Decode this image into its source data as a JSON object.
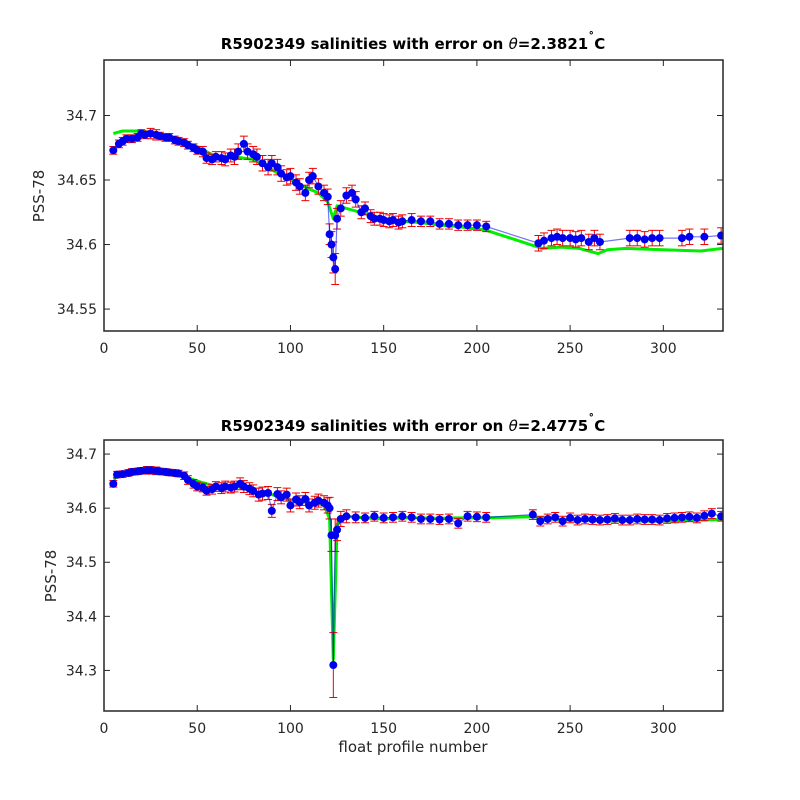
{
  "figure": {
    "background": "#ffffff",
    "colors": {
      "fit": "#00ee00",
      "error": "#ee0000",
      "points": "#0000ee"
    }
  },
  "chart_data": [
    {
      "type": "scatter",
      "title_prefix": "R5902349 salinities with error on ",
      "title_symbol": "θ",
      "title_value": "=2.3821",
      "title_deg": "˚",
      "title_unit": "C",
      "xlabel": "",
      "ylabel": "PSS-78",
      "xlim": [
        0,
        332
      ],
      "ylim": [
        34.533,
        34.743
      ],
      "xticks": [
        0,
        50,
        100,
        150,
        200,
        250,
        300
      ],
      "yticks": [
        34.55,
        34.6,
        34.65,
        34.7
      ],
      "ytick_labels": [
        "34.55",
        "34.6",
        "34.65",
        "34.7"
      ],
      "grid": false,
      "legend": "none",
      "series": [
        {
          "role": "calibrated fit",
          "style": "line",
          "x": [
            5,
            10,
            20,
            30,
            40,
            50,
            60,
            70,
            80,
            90,
            100,
            110,
            115,
            120,
            123,
            125,
            130,
            140,
            150,
            160,
            170,
            180,
            190,
            200,
            205,
            235,
            245,
            255,
            265,
            270,
            280,
            300,
            320,
            332
          ],
          "y": [
            34.686,
            34.688,
            34.688,
            34.686,
            34.681,
            34.676,
            34.668,
            34.668,
            34.666,
            34.658,
            34.65,
            34.643,
            34.64,
            34.633,
            34.62,
            34.63,
            34.628,
            34.624,
            34.62,
            34.618,
            34.617,
            34.615,
            34.614,
            34.612,
            34.611,
            34.597,
            34.598,
            34.597,
            34.593,
            34.596,
            34.597,
            34.596,
            34.595,
            34.597
          ]
        },
        {
          "role": "salinity with error",
          "style": "points",
          "x": [
            5,
            8,
            10,
            12,
            15,
            18,
            20,
            22,
            25,
            28,
            30,
            33,
            35,
            38,
            40,
            43,
            45,
            48,
            50,
            53,
            55,
            58,
            60,
            63,
            65,
            68,
            70,
            72,
            75,
            77,
            80,
            82,
            85,
            88,
            90,
            93,
            95,
            98,
            100,
            103,
            105,
            108,
            110,
            112,
            115,
            118,
            120,
            121,
            122,
            123,
            124,
            125,
            127,
            130,
            133,
            135,
            138,
            140,
            143,
            145,
            148,
            150,
            153,
            155,
            158,
            160,
            165,
            170,
            175,
            180,
            185,
            190,
            195,
            200,
            205,
            233,
            236,
            240,
            243,
            246,
            250,
            253,
            256,
            260,
            263,
            266,
            282,
            286,
            290,
            294,
            298,
            310,
            314,
            322,
            331
          ],
          "y": [
            34.673,
            34.678,
            34.68,
            34.682,
            34.682,
            34.683,
            34.686,
            34.685,
            34.686,
            34.685,
            34.684,
            34.683,
            34.683,
            34.681,
            34.68,
            34.679,
            34.677,
            34.675,
            34.673,
            34.672,
            34.667,
            34.666,
            34.668,
            34.667,
            34.666,
            34.669,
            34.668,
            34.672,
            34.678,
            34.672,
            34.67,
            34.668,
            34.663,
            34.66,
            34.663,
            34.66,
            34.655,
            34.652,
            34.653,
            34.648,
            34.645,
            34.64,
            34.65,
            34.653,
            34.645,
            34.64,
            34.637,
            34.608,
            34.6,
            34.59,
            34.581,
            34.62,
            34.628,
            34.638,
            34.64,
            34.635,
            34.625,
            34.628,
            34.622,
            34.62,
            34.62,
            34.619,
            34.618,
            34.619,
            34.617,
            34.618,
            34.619,
            34.618,
            34.618,
            34.616,
            34.616,
            34.615,
            34.615,
            34.615,
            34.614,
            34.601,
            34.603,
            34.605,
            34.606,
            34.605,
            34.605,
            34.604,
            34.605,
            34.602,
            34.605,
            34.602,
            34.605,
            34.605,
            34.604,
            34.605,
            34.605,
            34.605,
            34.606,
            34.606,
            34.607
          ],
          "err": [
            0.003,
            0.003,
            0.003,
            0.003,
            0.003,
            0.003,
            0.003,
            0.003,
            0.004,
            0.004,
            0.003,
            0.003,
            0.003,
            0.003,
            0.003,
            0.003,
            0.003,
            0.003,
            0.003,
            0.004,
            0.004,
            0.004,
            0.004,
            0.005,
            0.005,
            0.005,
            0.006,
            0.006,
            0.006,
            0.006,
            0.006,
            0.006,
            0.006,
            0.006,
            0.006,
            0.006,
            0.006,
            0.006,
            0.006,
            0.006,
            0.006,
            0.006,
            0.006,
            0.006,
            0.006,
            0.006,
            0.006,
            0.008,
            0.01,
            0.012,
            0.012,
            0.008,
            0.006,
            0.006,
            0.006,
            0.006,
            0.005,
            0.005,
            0.005,
            0.005,
            0.005,
            0.005,
            0.005,
            0.005,
            0.005,
            0.005,
            0.005,
            0.004,
            0.004,
            0.004,
            0.004,
            0.004,
            0.004,
            0.004,
            0.004,
            0.006,
            0.006,
            0.006,
            0.006,
            0.006,
            0.006,
            0.006,
            0.006,
            0.006,
            0.006,
            0.006,
            0.006,
            0.006,
            0.006,
            0.006,
            0.006,
            0.006,
            0.006,
            0.006,
            0.006
          ]
        }
      ]
    },
    {
      "type": "scatter",
      "title_prefix": "R5902349 salinities with error on ",
      "title_symbol": "θ",
      "title_value": "=2.4775",
      "title_deg": "˚",
      "title_unit": "C",
      "xlabel": "float profile number",
      "ylabel": "PSS-78",
      "xlim": [
        0,
        332
      ],
      "ylim": [
        34.225,
        34.726
      ],
      "xticks": [
        0,
        50,
        100,
        150,
        200,
        250,
        300
      ],
      "yticks": [
        34.3,
        34.4,
        34.5,
        34.6,
        34.7
      ],
      "ytick_labels": [
        "34.3",
        "34.4",
        "34.5",
        "34.6",
        "34.7"
      ],
      "grid": false,
      "legend": "none",
      "series": [
        {
          "role": "calibrated fit",
          "style": "line",
          "x": [
            5,
            10,
            20,
            30,
            40,
            50,
            60,
            70,
            80,
            90,
            100,
            110,
            118,
            121,
            123,
            125,
            130,
            140,
            150,
            160,
            170,
            180,
            190,
            200,
            205,
            230,
            240,
            250,
            260,
            270,
            280,
            290,
            300,
            310,
            320,
            332
          ],
          "y": [
            34.655,
            34.66,
            34.665,
            34.666,
            34.662,
            34.65,
            34.64,
            34.642,
            34.63,
            34.625,
            34.615,
            34.61,
            34.606,
            34.58,
            34.32,
            34.57,
            34.585,
            34.582,
            34.58,
            34.582,
            34.582,
            34.581,
            34.582,
            34.582,
            34.582,
            34.584,
            34.58,
            34.578,
            34.577,
            34.576,
            34.577,
            34.576,
            34.576,
            34.577,
            34.578,
            34.579
          ]
        },
        {
          "role": "salinity with error",
          "style": "points",
          "x": [
            5,
            7,
            10,
            13,
            15,
            18,
            20,
            23,
            25,
            28,
            30,
            33,
            35,
            38,
            40,
            43,
            45,
            48,
            50,
            53,
            55,
            58,
            60,
            63,
            65,
            68,
            70,
            73,
            75,
            78,
            80,
            83,
            85,
            88,
            90,
            93,
            95,
            98,
            100,
            103,
            105,
            108,
            110,
            113,
            115,
            118,
            120,
            121,
            122,
            123,
            124,
            125,
            127,
            130,
            135,
            140,
            145,
            150,
            155,
            160,
            165,
            170,
            175,
            180,
            185,
            190,
            195,
            200,
            205,
            230,
            234,
            238,
            242,
            246,
            250,
            254,
            258,
            262,
            266,
            270,
            274,
            278,
            282,
            286,
            290,
            294,
            298,
            302,
            306,
            310,
            314,
            318,
            322,
            326,
            331
          ],
          "y": [
            34.645,
            34.662,
            34.663,
            34.665,
            34.667,
            34.668,
            34.669,
            34.67,
            34.67,
            34.669,
            34.668,
            34.667,
            34.666,
            34.665,
            34.664,
            34.66,
            34.652,
            34.645,
            34.64,
            34.638,
            34.632,
            34.635,
            34.64,
            34.637,
            34.64,
            34.638,
            34.64,
            34.645,
            34.64,
            34.636,
            34.632,
            34.625,
            34.627,
            34.628,
            34.595,
            34.626,
            34.62,
            34.625,
            34.605,
            34.616,
            34.611,
            34.617,
            34.605,
            34.61,
            34.614,
            34.61,
            34.605,
            34.6,
            34.55,
            34.31,
            34.55,
            34.56,
            34.58,
            34.585,
            34.583,
            34.582,
            34.585,
            34.582,
            34.583,
            34.585,
            34.583,
            34.58,
            34.58,
            34.579,
            34.58,
            34.572,
            34.585,
            34.584,
            34.583,
            34.588,
            34.576,
            34.58,
            34.583,
            34.576,
            34.582,
            34.578,
            34.58,
            34.579,
            34.578,
            34.579,
            34.581,
            34.578,
            34.578,
            34.58,
            34.579,
            34.579,
            34.578,
            34.581,
            34.582,
            34.583,
            34.584,
            34.582,
            34.586,
            34.59,
            34.585
          ],
          "err": [
            0.006,
            0.006,
            0.006,
            0.006,
            0.006,
            0.006,
            0.006,
            0.007,
            0.007,
            0.007,
            0.006,
            0.006,
            0.006,
            0.006,
            0.006,
            0.007,
            0.008,
            0.008,
            0.008,
            0.008,
            0.008,
            0.009,
            0.009,
            0.01,
            0.01,
            0.01,
            0.01,
            0.011,
            0.011,
            0.011,
            0.011,
            0.012,
            0.012,
            0.012,
            0.012,
            0.012,
            0.012,
            0.012,
            0.012,
            0.012,
            0.012,
            0.012,
            0.012,
            0.012,
            0.012,
            0.013,
            0.014,
            0.02,
            0.03,
            0.06,
            0.03,
            0.02,
            0.014,
            0.012,
            0.01,
            0.009,
            0.009,
            0.009,
            0.009,
            0.009,
            0.009,
            0.009,
            0.009,
            0.009,
            0.009,
            0.009,
            0.009,
            0.009,
            0.009,
            0.009,
            0.009,
            0.009,
            0.009,
            0.009,
            0.009,
            0.009,
            0.009,
            0.009,
            0.009,
            0.009,
            0.009,
            0.009,
            0.009,
            0.009,
            0.009,
            0.009,
            0.009,
            0.009,
            0.009,
            0.009,
            0.009,
            0.009,
            0.009,
            0.009,
            0.009
          ]
        }
      ]
    }
  ]
}
